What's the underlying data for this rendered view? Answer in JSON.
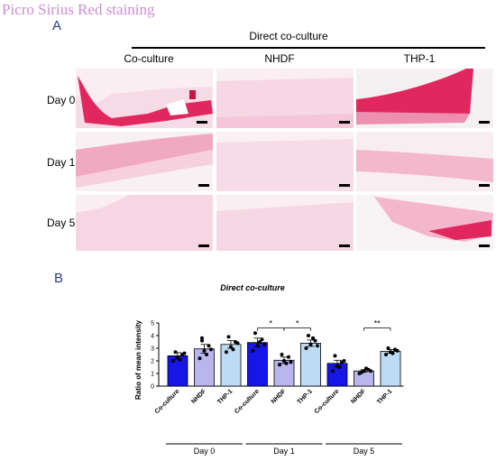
{
  "figure_title": "Picro Sirius Red staining",
  "panel_a": {
    "label": "A",
    "group_heading": "Direct co-culture",
    "columns": [
      "Co-culture",
      "NHDF",
      "THP-1"
    ],
    "rows": [
      "Day 0",
      "Day 1",
      "Day 5"
    ]
  },
  "panel_b": {
    "label": "B"
  },
  "colors": {
    "title": "#c98fd0",
    "panel_letter": "#2b3b86",
    "tissue_dark": "#e0285e",
    "tissue_light": "#f2bfd3",
    "bar_coculture": "#1616e6",
    "bar_nhdf": "#b9b6ee",
    "bar_thp1": "#bcdcf5"
  },
  "chart_data": {
    "type": "bar",
    "title": "Direct co-culture",
    "ylabel": "Ratio of mean intensity",
    "ylim": [
      0,
      5
    ],
    "yticks": [
      0,
      1,
      2,
      3,
      4,
      5
    ],
    "categories": [
      "Co-culture",
      "NHDF",
      "THP-1",
      "Co-culture",
      "NHDF",
      "THP-1",
      "Co-culture",
      "NHDF",
      "THP-1"
    ],
    "groups": [
      {
        "label": "Day 0",
        "indices": [
          0,
          1,
          2
        ]
      },
      {
        "label": "Day 1",
        "indices": [
          3,
          4,
          5
        ]
      },
      {
        "label": "Day 5",
        "indices": [
          6,
          7,
          8
        ]
      }
    ],
    "values": [
      2.4,
      2.95,
      3.3,
      3.45,
      2.05,
      3.4,
      1.8,
      1.2,
      2.75
    ],
    "errors": [
      0.25,
      0.35,
      0.3,
      0.35,
      0.25,
      0.25,
      0.25,
      0.1,
      0.15
    ],
    "points": [
      [
        2.0,
        2.3,
        2.5,
        2.7,
        2.1,
        2.6
      ],
      [
        2.2,
        2.8,
        3.2,
        3.6,
        2.5,
        2.9,
        3.8
      ],
      [
        2.7,
        3.1,
        3.5,
        3.9,
        2.9,
        3.4
      ],
      [
        2.8,
        3.2,
        3.7,
        4.2,
        3.5,
        3.3
      ],
      [
        1.7,
        2.0,
        2.3,
        2.5,
        1.8,
        1.9
      ],
      [
        3.0,
        3.3,
        3.6,
        4.0,
        3.8,
        3.2
      ],
      [
        1.2,
        1.6,
        1.9,
        2.4,
        1.5,
        2.0
      ],
      [
        1.0,
        1.2,
        1.3,
        1.1,
        1.4,
        1.2
      ],
      [
        2.5,
        2.7,
        2.9,
        3.0,
        2.6,
        2.8
      ]
    ],
    "significance": [
      {
        "from": 3,
        "to": 4,
        "label": "*",
        "y": 4.6
      },
      {
        "from": 4,
        "to": 5,
        "label": "*",
        "y": 4.6
      },
      {
        "from": 7,
        "to": 8,
        "label": "**",
        "y": 4.6
      }
    ]
  }
}
